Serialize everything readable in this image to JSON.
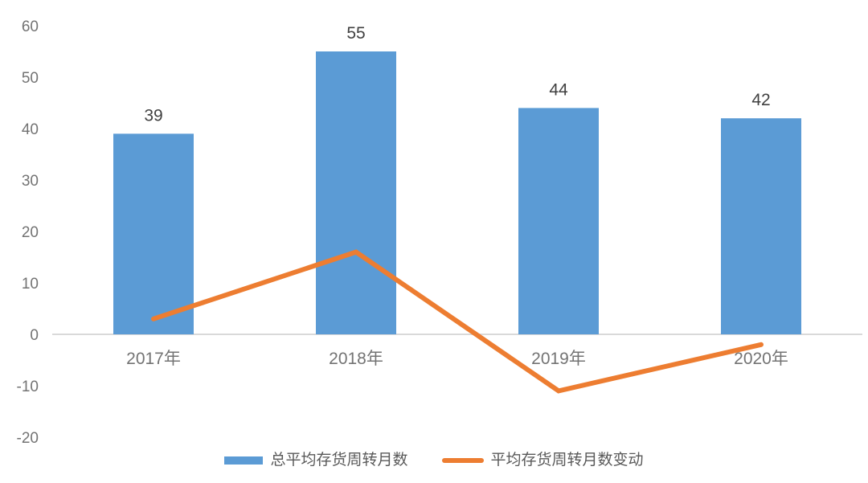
{
  "chart_data": {
    "type": "bar",
    "subtype": "combo-bar-line",
    "categories": [
      "2017年",
      "2018年",
      "2019年",
      "2020年"
    ],
    "series": [
      {
        "name": "总平均存货周转月数",
        "type": "bar",
        "values": [
          39,
          55,
          44,
          42
        ],
        "data_labels": [
          "39",
          "55",
          "44",
          "42"
        ],
        "color": "#5B9BD5"
      },
      {
        "name": "平均存货周转月数变动",
        "type": "line",
        "values": [
          3,
          16,
          -11,
          -2
        ],
        "color": "#ED7D31"
      }
    ],
    "title": "",
    "xlabel": "",
    "ylabel": "",
    "y_axis": {
      "min": -20,
      "max": 60,
      "step": 10,
      "tick_values": [
        60,
        50,
        40,
        30,
        20,
        10,
        0,
        -10,
        -20
      ],
      "tick_labels": [
        "60",
        "50",
        "40",
        "30",
        "20",
        "10",
        "0",
        "-10",
        "-20"
      ]
    },
    "x_axis": {
      "labels": [
        "2017年",
        "2018年",
        "2019年",
        "2020年"
      ]
    },
    "grid": false,
    "legend_position": "bottom",
    "colors": {
      "bar_fill": "#5B9BD5",
      "line_stroke": "#ED7D31",
      "axis_line": "#D9D9D9",
      "data_label_text": "#404040",
      "axis_tick_text": "#737373",
      "category_text": "#737373",
      "legend_text": "#595959",
      "background": "#FFFFFF"
    }
  }
}
